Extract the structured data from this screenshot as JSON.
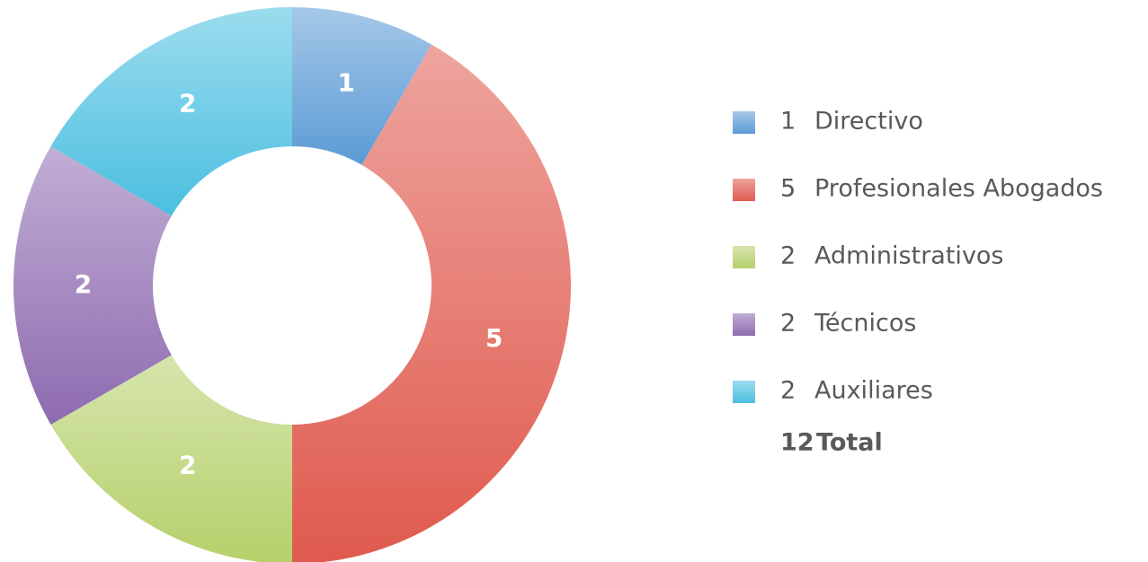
{
  "chart_data": {
    "type": "pie",
    "categories": [
      "Directivo",
      "Profesionales Abogados",
      "Administrativos",
      "Técnicos",
      "Auxiliares"
    ],
    "values": [
      1,
      5,
      2,
      2,
      2
    ],
    "colors": [
      "#5b9bd5",
      "#e05a4e",
      "#b5d06a",
      "#8e6bb0",
      "#4bbfe0"
    ],
    "total": 12,
    "total_label": "Total"
  }
}
